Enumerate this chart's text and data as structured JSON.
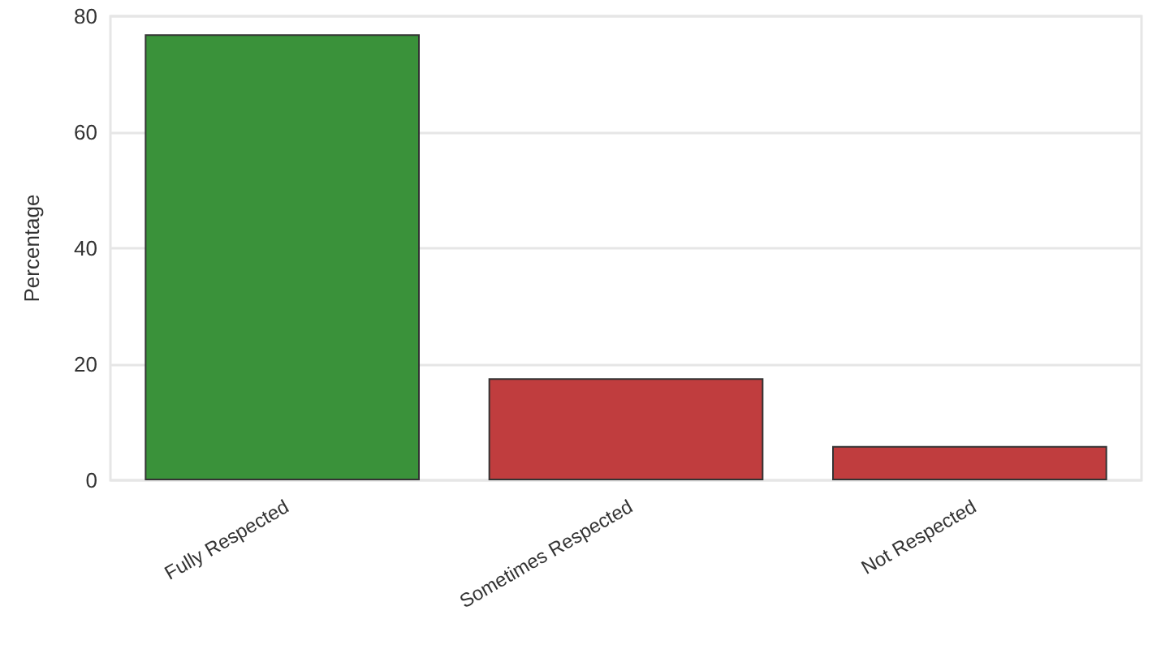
{
  "chart_data": {
    "type": "bar",
    "ylabel": "Percentage",
    "categories": [
      "Fully Respected",
      "Sometimes Respected",
      "Not Respected"
    ],
    "values": [
      76.9,
      17.6,
      5.9
    ],
    "colors": [
      "#3a923a",
      "#c03d3e",
      "#c03d3e"
    ],
    "ylim": [
      0,
      80
    ],
    "yticks": [
      0,
      20,
      40,
      60,
      80
    ],
    "grid": "y"
  }
}
